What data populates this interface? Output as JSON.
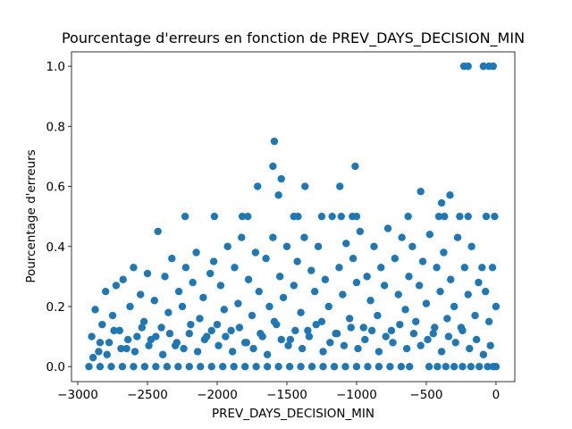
{
  "chart_data": {
    "type": "scatter",
    "title": "Pourcentage d'erreurs en fonction de PREV_DAYS_DECISION_MIN",
    "x_label": "PREV_DAYS_DECISION_MIN",
    "y_label": "Pourcentage d'erreurs",
    "color": "#1f77b4",
    "xlim": [
      -3045,
      135
    ],
    "ylim": [
      -0.05,
      1.048
    ],
    "xticks": [
      {
        "value": -3000,
        "label": "−3000"
      },
      {
        "value": -2500,
        "label": "−2500"
      },
      {
        "value": -2000,
        "label": "−2000"
      },
      {
        "value": -1500,
        "label": "−1500"
      },
      {
        "value": -1000,
        "label": "−1000"
      },
      {
        "value": -500,
        "label": "−500"
      },
      0
    ],
    "yticks": [
      {
        "value": 0,
        "label": "0.0"
      },
      0.2,
      0.4,
      0.6,
      0.8,
      {
        "value": 1,
        "label": "1.0"
      }
    ],
    "x": [
      -2920,
      -2840,
      -2760,
      -2680,
      -2600,
      -2520,
      -2440,
      -2360,
      -2280,
      -2200,
      -2120,
      -2040,
      -1960,
      -1880,
      -1800,
      -1720,
      -1640,
      -1560,
      -1480,
      -1400,
      -1320,
      -1240,
      -1160,
      -1080,
      -1000,
      -920,
      -840,
      -760,
      -680,
      -620,
      -480,
      -420,
      -360,
      -300,
      -240,
      -180,
      -120,
      -60,
      -20,
      0,
      -230,
      -200,
      -90,
      -50,
      -20,
      -1590,
      -1600,
      -1010,
      -1540,
      -1710,
      -1370,
      -1120,
      -1560,
      -540,
      -330,
      -390,
      -2230,
      -2020,
      -1820,
      -1780,
      -1450,
      -1420,
      -1250,
      -1110,
      -1030,
      -1000,
      -630,
      -410,
      -370,
      -260,
      -200,
      -70,
      -10,
      -2900,
      -2875,
      -2850,
      -2825,
      -2800,
      -2775,
      -2750,
      -2725,
      -2700,
      -2675,
      -2650,
      -2625,
      -2600,
      -2575,
      -2550,
      -2525,
      -2500,
      -2475,
      -2450,
      -2425,
      -2400,
      -2375,
      -2350,
      -2325,
      -2300,
      -2275,
      -2250,
      -2225,
      -2200,
      -2175,
      -2150,
      -2125,
      -2100,
      -2075,
      -2050,
      -2025,
      -2000,
      -1975,
      -1950,
      -1925,
      -1900,
      -1875,
      -1850,
      -1825,
      -1800,
      -1775,
      -1750,
      -1725,
      -1700,
      -1675,
      -1650,
      -1625,
      -1600,
      -1575,
      -1550,
      -1525,
      -1500,
      -1475,
      -1450,
      -1425,
      -1400,
      -1375,
      -1350,
      -1325,
      -1300,
      -1275,
      -1250,
      -1225,
      -1200,
      -1175,
      -1150,
      -1125,
      -1100,
      -1075,
      -1050,
      -1025,
      -1000,
      -975,
      -950,
      -925,
      -900,
      -875,
      -850,
      -825,
      -800,
      -775,
      -750,
      -725,
      -700,
      -675,
      -650,
      -625,
      -600,
      -575,
      -550,
      -525,
      -500,
      -475,
      -450,
      -425,
      -400,
      -375,
      -350,
      -325,
      -300,
      -275,
      -250,
      -225,
      -200,
      -175,
      -150,
      -125,
      -100,
      -75,
      -50,
      -25,
      0,
      -2890,
      -2840,
      -2790,
      -2740,
      -2690,
      -2640,
      -2590,
      -2540,
      -2490,
      -2440,
      -2390,
      -2340,
      -2290,
      -2240,
      -2190,
      -2140,
      -2090,
      -2040,
      -1990,
      -1940,
      -1890,
      -1840,
      -1790,
      -1740,
      -1690,
      -1640,
      -1590,
      -1540,
      -1490,
      -1440,
      -1390,
      -1340,
      -1290,
      -1240,
      -1190,
      -1140,
      -1090,
      -1040,
      -990,
      -940,
      -890,
      -840,
      -790,
      -740,
      -690,
      -640,
      -590,
      -540,
      -490,
      -440,
      -390,
      -340,
      -290,
      -240,
      -190,
      -140,
      -90,
      -40
    ],
    "values": [
      0,
      0,
      0,
      0,
      0,
      0,
      0,
      0,
      0,
      0,
      0,
      0,
      0,
      0,
      0,
      0,
      0,
      0,
      0,
      0,
      0,
      0,
      0,
      0,
      0,
      0,
      0,
      0,
      0,
      0,
      0,
      0,
      0,
      0,
      0,
      0,
      0,
      0,
      0,
      0,
      1,
      1,
      1,
      1,
      1,
      0.75,
      0.667,
      0.667,
      0.625,
      0.6,
      0.6,
      0.6,
      0.571,
      0.583,
      0.571,
      0.545,
      0.5,
      0.5,
      0.5,
      0.5,
      0.5,
      0.5,
      0.5,
      0.5,
      0.5,
      0.5,
      0.5,
      0.5,
      0.5,
      0.5,
      0.5,
      0.5,
      0.5,
      0.1,
      0.19,
      0.05,
      0.14,
      0.25,
      0.08,
      0.17,
      0.27,
      0.12,
      0.29,
      0.06,
      0.2,
      0.33,
      0.1,
      0.24,
      0.15,
      0.31,
      0.09,
      0.22,
      0.45,
      0.13,
      0.3,
      0.18,
      0.36,
      0.07,
      0.25,
      0.2,
      0.33,
      0.11,
      0.28,
      0.38,
      0.16,
      0.23,
      0.1,
      0.31,
      0.35,
      0.14,
      0.27,
      0.19,
      0.4,
      0.12,
      0.33,
      0.21,
      0.43,
      0.08,
      0.29,
      0.17,
      0.38,
      0.25,
      0.1,
      0.36,
      0.2,
      0.43,
      0.14,
      0.3,
      0.23,
      0.4,
      0.09,
      0.27,
      0.35,
      0.18,
      0.43,
      0.12,
      0.32,
      0.25,
      0.4,
      0.15,
      0.29,
      0.2,
      0.5,
      0.11,
      0.33,
      0.24,
      0.41,
      0.16,
      0.36,
      0.28,
      0.45,
      0.13,
      0.3,
      0.22,
      0.4,
      0.17,
      0.33,
      0.27,
      0.46,
      0.12,
      0.36,
      0.24,
      0.43,
      0.19,
      0.3,
      0.4,
      0.15,
      0.27,
      0.35,
      0.21,
      0.44,
      0.11,
      0.33,
      0.25,
      0.38,
      0.16,
      0.29,
      0.2,
      0.43,
      0.13,
      0.33,
      0.24,
      0.4,
      0.17,
      0.28,
      0.33,
      0.25,
      0.15,
      0.33,
      0.2,
      0.03,
      0.08,
      0.04,
      0.12,
      0.06,
      0.09,
      0.05,
      0.13,
      0.07,
      0.1,
      0.04,
      0.11,
      0.08,
      0.06,
      0.14,
      0.05,
      0.09,
      0.12,
      0.07,
      0.1,
      0.05,
      0.13,
      0.08,
      0.06,
      0.11,
      0.04,
      0.15,
      0.09,
      0.07,
      0.12,
      0.06,
      0.1,
      0.14,
      0.05,
      0.08,
      0.11,
      0.07,
      0.13,
      0.06,
      0.09,
      0.12,
      0.05,
      0.1,
      0.08,
      0.14,
      0.06,
      0.11,
      0.07,
      0.09,
      0.13,
      0.05,
      0.1,
      0.08,
      0.12,
      0.06,
      0.09,
      0.04,
      0.07
    ]
  }
}
